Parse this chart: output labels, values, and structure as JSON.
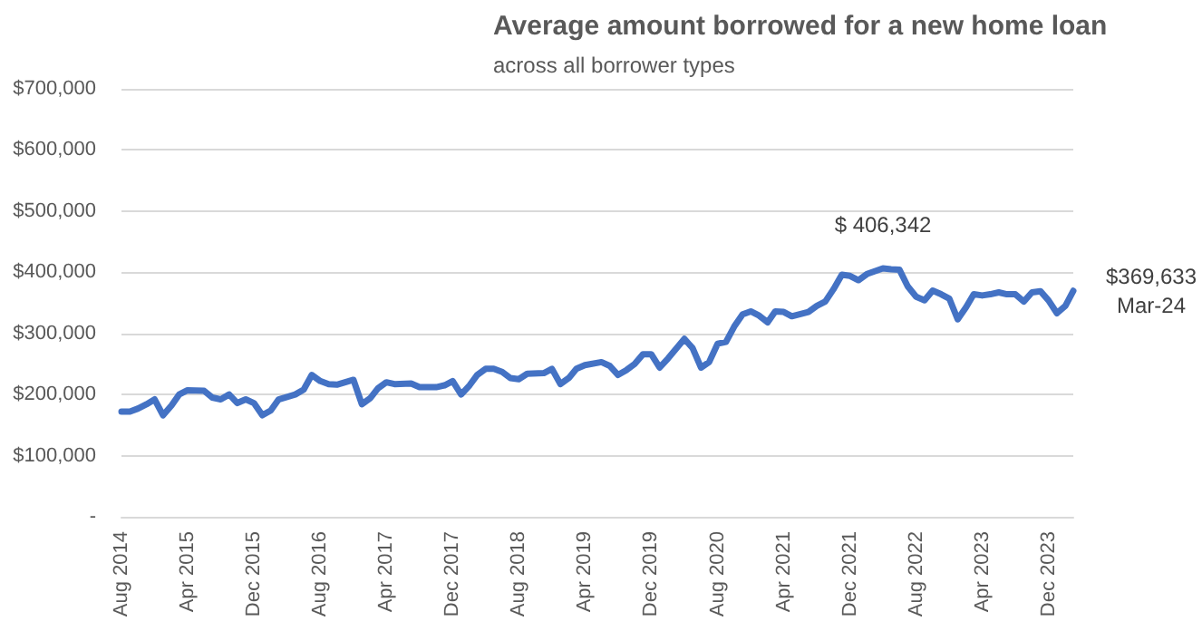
{
  "chart_data": {
    "type": "line",
    "title": "Average amount borrowed for a new home loan",
    "subtitle": "across all borrower types",
    "x": [
      "2014-08",
      "2014-09",
      "2014-10",
      "2014-11",
      "2014-12",
      "2015-01",
      "2015-02",
      "2015-03",
      "2015-04",
      "2015-06",
      "2015-07",
      "2015-08",
      "2015-09",
      "2015-10",
      "2015-11",
      "2015-12",
      "2016-01",
      "2016-02",
      "2016-03",
      "2016-05",
      "2016-06",
      "2016-07",
      "2016-08",
      "2016-09",
      "2016-10",
      "2016-12",
      "2017-01",
      "2017-02",
      "2017-03",
      "2017-04",
      "2017-05",
      "2017-07",
      "2017-08",
      "2017-09",
      "2017-10",
      "2017-11",
      "2017-12",
      "2018-01",
      "2018-02",
      "2018-03",
      "2018-04",
      "2018-05",
      "2018-06",
      "2018-07",
      "2018-08",
      "2018-09",
      "2018-11",
      "2018-12",
      "2019-01",
      "2019-02",
      "2019-03",
      "2019-04",
      "2019-06",
      "2019-07",
      "2019-08",
      "2019-09",
      "2019-10",
      "2019-11",
      "2019-12",
      "2020-01",
      "2020-02",
      "2020-04",
      "2020-05",
      "2020-06",
      "2020-07",
      "2020-08",
      "2020-09",
      "2020-10",
      "2020-11",
      "2020-12",
      "2021-01",
      "2021-02",
      "2021-03",
      "2021-04",
      "2021-05",
      "2021-07",
      "2021-08",
      "2021-09",
      "2021-10",
      "2021-11",
      "2021-12",
      "2022-01",
      "2022-02",
      "2022-04",
      "2022-05",
      "2022-06",
      "2022-07",
      "2022-08",
      "2022-09",
      "2022-10",
      "2022-11",
      "2022-12",
      "2023-01",
      "2023-02",
      "2023-03",
      "2023-04",
      "2023-05",
      "2023-06",
      "2023-07",
      "2023-08",
      "2023-09",
      "2023-10",
      "2023-11",
      "2023-12",
      "2024-01",
      "2024-02",
      "2024-03"
    ],
    "series": [
      {
        "color": "#4472c4",
        "values": [
          172000,
          172000,
          177000,
          184000,
          192000,
          166000,
          182000,
          200000,
          207000,
          206000,
          195000,
          192000,
          200000,
          186000,
          192000,
          186000,
          166000,
          174000,
          192000,
          200000,
          208000,
          232000,
          222000,
          217000,
          216000,
          224000,
          184000,
          194000,
          210000,
          220000,
          217000,
          218000,
          212000,
          212000,
          212000,
          215000,
          222000,
          200000,
          215000,
          232000,
          242000,
          242000,
          237000,
          227000,
          225000,
          234000,
          235000,
          242000,
          217000,
          227000,
          242000,
          248000,
          253000,
          247000,
          232000,
          240000,
          250000,
          266000,
          266000,
          244000,
          259000,
          291000,
          276000,
          244000,
          253000,
          283000,
          286000,
          311000,
          331000,
          336000,
          329000,
          318000,
          336000,
          335000,
          328000,
          335000,
          345000,
          352000,
          372000,
          396000,
          394000,
          387000,
          397000,
          406342,
          405000,
          404000,
          377000,
          360000,
          354000,
          370000,
          364000,
          357000,
          323000,
          343000,
          364000,
          362000,
          364000,
          367000,
          364000,
          364000,
          352000,
          367000,
          369000,
          354000,
          333000,
          345000,
          369633
        ]
      }
    ],
    "xlim": [
      "2014-08",
      "2024-03"
    ],
    "xticks": [
      {
        "value": "2014-08",
        "label": "Aug 2014"
      },
      {
        "value": "2015-04",
        "label": "Apr 2015"
      },
      {
        "value": "2015-12",
        "label": "Dec 2015"
      },
      {
        "value": "2016-08",
        "label": "Aug 2016"
      },
      {
        "value": "2017-04",
        "label": "Apr 2017"
      },
      {
        "value": "2017-12",
        "label": "Dec 2017"
      },
      {
        "value": "2018-08",
        "label": "Aug 2018"
      },
      {
        "value": "2019-04",
        "label": "Apr 2019"
      },
      {
        "value": "2019-12",
        "label": "Dec 2019"
      },
      {
        "value": "2020-08",
        "label": "Aug 2020"
      },
      {
        "value": "2021-04",
        "label": "Apr 2021"
      },
      {
        "value": "2021-12",
        "label": "Dec 2021"
      },
      {
        "value": "2022-08",
        "label": "Aug 2022"
      },
      {
        "value": "2023-04",
        "label": "Apr 2023"
      },
      {
        "value": "2023-12",
        "label": "Dec 2023"
      }
    ],
    "ylim": [
      0,
      700000
    ],
    "yticks": [
      {
        "value": 0,
        "label": "-"
      },
      {
        "value": 100000,
        "label": "$100,000"
      },
      {
        "value": 200000,
        "label": "$200,000"
      },
      {
        "value": 300000,
        "label": "$300,000"
      },
      {
        "value": 400000,
        "label": "$400,000"
      },
      {
        "value": 500000,
        "label": "$500,000"
      },
      {
        "value": 600000,
        "label": "$600,000"
      },
      {
        "value": 700000,
        "label": "$700,000"
      }
    ],
    "annotations": [
      {
        "text": "$ 406,342",
        "x": "2022-04",
        "y": 406342
      },
      {
        "text": "$369,633",
        "x": "2024-03",
        "y": 369633
      },
      {
        "text": "Mar-24",
        "x": "2024-03",
        "y": 369633
      }
    ],
    "grid": "y",
    "marker": "none",
    "line_style": "solid"
  }
}
